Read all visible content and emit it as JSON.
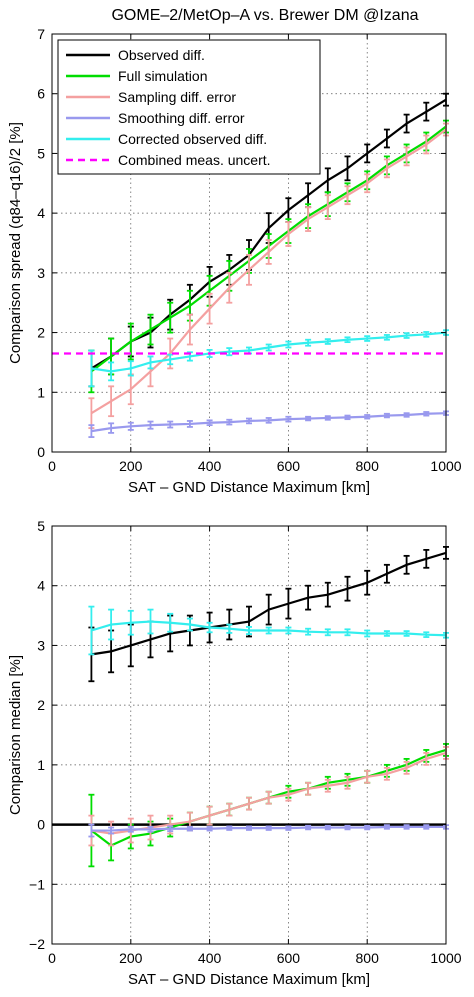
{
  "title": "GOME–2/MetOp–A vs. Brewer DM @Izana",
  "colors": {
    "observed": "#000000",
    "full_simulation": "#00dd00",
    "sampling": "#f4a0a0",
    "smoothing": "#9999ee",
    "corrected": "#33eeee",
    "combined": "#ff00ff"
  },
  "chart_data": [
    {
      "type": "line",
      "xlabel": "SAT – GND Distance Maximum [km]",
      "ylabel": "Comparison spread (q84–q16)/2 [%]",
      "xlim": [
        0,
        1000
      ],
      "ylim": [
        0,
        7
      ],
      "xticks": [
        0,
        200,
        400,
        600,
        800,
        1000
      ],
      "yticks": [
        0,
        1,
        2,
        3,
        4,
        5,
        6,
        7
      ],
      "grid": true,
      "legend_position": "top-left",
      "x": [
        100,
        150,
        200,
        250,
        300,
        350,
        400,
        450,
        500,
        550,
        600,
        650,
        700,
        750,
        800,
        850,
        900,
        950,
        1000
      ],
      "series": [
        {
          "name": "Observed diff.",
          "color_key": "observed",
          "values": [
            1.4,
            1.6,
            1.85,
            2.0,
            2.3,
            2.55,
            2.85,
            3.05,
            3.3,
            3.75,
            4.05,
            4.3,
            4.55,
            4.75,
            5.0,
            5.25,
            5.5,
            5.7,
            5.9
          ],
          "err": [
            0.3,
            0.3,
            0.25,
            0.25,
            0.25,
            0.25,
            0.25,
            0.25,
            0.25,
            0.25,
            0.2,
            0.2,
            0.2,
            0.2,
            0.15,
            0.15,
            0.15,
            0.15,
            0.1
          ]
        },
        {
          "name": "Full simulation",
          "color_key": "full_simulation",
          "values": [
            1.35,
            1.6,
            1.85,
            2.05,
            2.25,
            2.45,
            2.7,
            2.95,
            3.2,
            3.45,
            3.7,
            3.95,
            4.15,
            4.35,
            4.55,
            4.8,
            5.0,
            5.2,
            5.45
          ],
          "err": [
            0.35,
            0.3,
            0.3,
            0.25,
            0.25,
            0.25,
            0.25,
            0.25,
            0.2,
            0.2,
            0.2,
            0.2,
            0.2,
            0.15,
            0.15,
            0.15,
            0.15,
            0.15,
            0.1
          ]
        },
        {
          "name": "Sampling diff. error",
          "color_key": "sampling",
          "values": [
            0.65,
            0.85,
            1.05,
            1.35,
            1.65,
            2.05,
            2.4,
            2.75,
            3.05,
            3.35,
            3.65,
            3.9,
            4.1,
            4.3,
            4.5,
            4.75,
            4.95,
            5.15,
            5.4
          ],
          "err": [
            0.25,
            0.25,
            0.25,
            0.25,
            0.25,
            0.25,
            0.25,
            0.25,
            0.25,
            0.2,
            0.2,
            0.2,
            0.2,
            0.15,
            0.15,
            0.15,
            0.15,
            0.15,
            0.1
          ]
        },
        {
          "name": "Smoothing diff. error",
          "color_key": "smoothing",
          "values": [
            0.35,
            0.4,
            0.43,
            0.45,
            0.46,
            0.47,
            0.49,
            0.5,
            0.52,
            0.53,
            0.55,
            0.56,
            0.57,
            0.58,
            0.59,
            0.61,
            0.62,
            0.64,
            0.65
          ],
          "err": [
            0.1,
            0.08,
            0.06,
            0.06,
            0.05,
            0.05,
            0.04,
            0.04,
            0.04,
            0.04,
            0.04,
            0.03,
            0.03,
            0.03,
            0.03,
            0.03,
            0.03,
            0.03,
            0.03
          ]
        },
        {
          "name": "Corrected observed diff.",
          "color_key": "corrected",
          "values": [
            1.4,
            1.35,
            1.4,
            1.5,
            1.55,
            1.6,
            1.65,
            1.68,
            1.7,
            1.75,
            1.8,
            1.83,
            1.85,
            1.88,
            1.9,
            1.92,
            1.95,
            1.97,
            2.0
          ],
          "err": [
            0.3,
            0.15,
            0.12,
            0.1,
            0.08,
            0.07,
            0.06,
            0.06,
            0.05,
            0.05,
            0.05,
            0.05,
            0.04,
            0.04,
            0.04,
            0.04,
            0.04,
            0.04,
            0.04
          ]
        }
      ],
      "reference_line": {
        "name": "Combined meas. uncert.",
        "color_key": "combined",
        "y": 1.65,
        "style": "dashed"
      }
    },
    {
      "type": "line",
      "xlabel": "SAT – GND Distance Maximum [km]",
      "ylabel": "Comparison median [%]",
      "xlim": [
        0,
        1000
      ],
      "ylim": [
        -2,
        5
      ],
      "xticks": [
        0,
        200,
        400,
        600,
        800,
        1000
      ],
      "yticks": [
        -2,
        -1,
        0,
        1,
        2,
        3,
        4,
        5
      ],
      "grid": true,
      "x": [
        100,
        150,
        200,
        250,
        300,
        350,
        400,
        450,
        500,
        550,
        600,
        650,
        700,
        750,
        800,
        850,
        900,
        950,
        1000
      ],
      "zero_line": 0,
      "series": [
        {
          "name": "Observed diff.",
          "color_key": "observed",
          "values": [
            2.85,
            2.9,
            3.0,
            3.1,
            3.2,
            3.25,
            3.3,
            3.35,
            3.4,
            3.6,
            3.7,
            3.8,
            3.85,
            3.95,
            4.05,
            4.2,
            4.35,
            4.45,
            4.55
          ],
          "err": [
            0.45,
            0.35,
            0.35,
            0.3,
            0.3,
            0.25,
            0.25,
            0.25,
            0.25,
            0.25,
            0.25,
            0.2,
            0.2,
            0.2,
            0.2,
            0.15,
            0.15,
            0.15,
            0.1
          ]
        },
        {
          "name": "Full simulation",
          "color_key": "full_simulation",
          "values": [
            -0.1,
            -0.35,
            -0.2,
            -0.15,
            -0.05,
            0.05,
            0.15,
            0.25,
            0.35,
            0.45,
            0.55,
            0.6,
            0.7,
            0.75,
            0.8,
            0.9,
            1.0,
            1.15,
            1.25
          ],
          "err": [
            0.6,
            0.25,
            0.2,
            0.2,
            0.15,
            0.15,
            0.15,
            0.1,
            0.1,
            0.1,
            0.1,
            0.1,
            0.1,
            0.1,
            0.1,
            0.1,
            0.1,
            0.1,
            0.1
          ]
        },
        {
          "name": "Sampling diff. error",
          "color_key": "sampling",
          "values": [
            -0.1,
            -0.15,
            -0.1,
            -0.05,
            0.0,
            0.05,
            0.15,
            0.25,
            0.35,
            0.45,
            0.5,
            0.6,
            0.65,
            0.7,
            0.8,
            0.85,
            0.95,
            1.1,
            1.2
          ],
          "err": [
            0.25,
            0.2,
            0.2,
            0.2,
            0.15,
            0.15,
            0.15,
            0.1,
            0.1,
            0.1,
            0.1,
            0.1,
            0.1,
            0.1,
            0.1,
            0.1,
            0.1,
            0.1,
            0.1
          ]
        },
        {
          "name": "Smoothing diff. error",
          "color_key": "smoothing",
          "values": [
            -0.1,
            -0.1,
            -0.08,
            -0.08,
            -0.07,
            -0.07,
            -0.07,
            -0.06,
            -0.06,
            -0.06,
            -0.06,
            -0.05,
            -0.05,
            -0.05,
            -0.05,
            -0.04,
            -0.04,
            -0.04,
            -0.04
          ],
          "err": [
            0.1,
            0.05,
            0.04,
            0.04,
            0.04,
            0.03,
            0.03,
            0.03,
            0.03,
            0.03,
            0.03,
            0.03,
            0.03,
            0.03,
            0.03,
            0.03,
            0.03,
            0.03,
            0.03
          ]
        },
        {
          "name": "Corrected observed diff.",
          "color_key": "corrected",
          "values": [
            3.25,
            3.35,
            3.38,
            3.4,
            3.38,
            3.35,
            3.3,
            3.28,
            3.25,
            3.25,
            3.25,
            3.23,
            3.22,
            3.22,
            3.2,
            3.2,
            3.2,
            3.18,
            3.17
          ],
          "err": [
            0.4,
            0.25,
            0.2,
            0.2,
            0.15,
            0.1,
            0.08,
            0.07,
            0.06,
            0.05,
            0.05,
            0.05,
            0.05,
            0.05,
            0.05,
            0.04,
            0.04,
            0.04,
            0.04
          ]
        }
      ]
    }
  ]
}
